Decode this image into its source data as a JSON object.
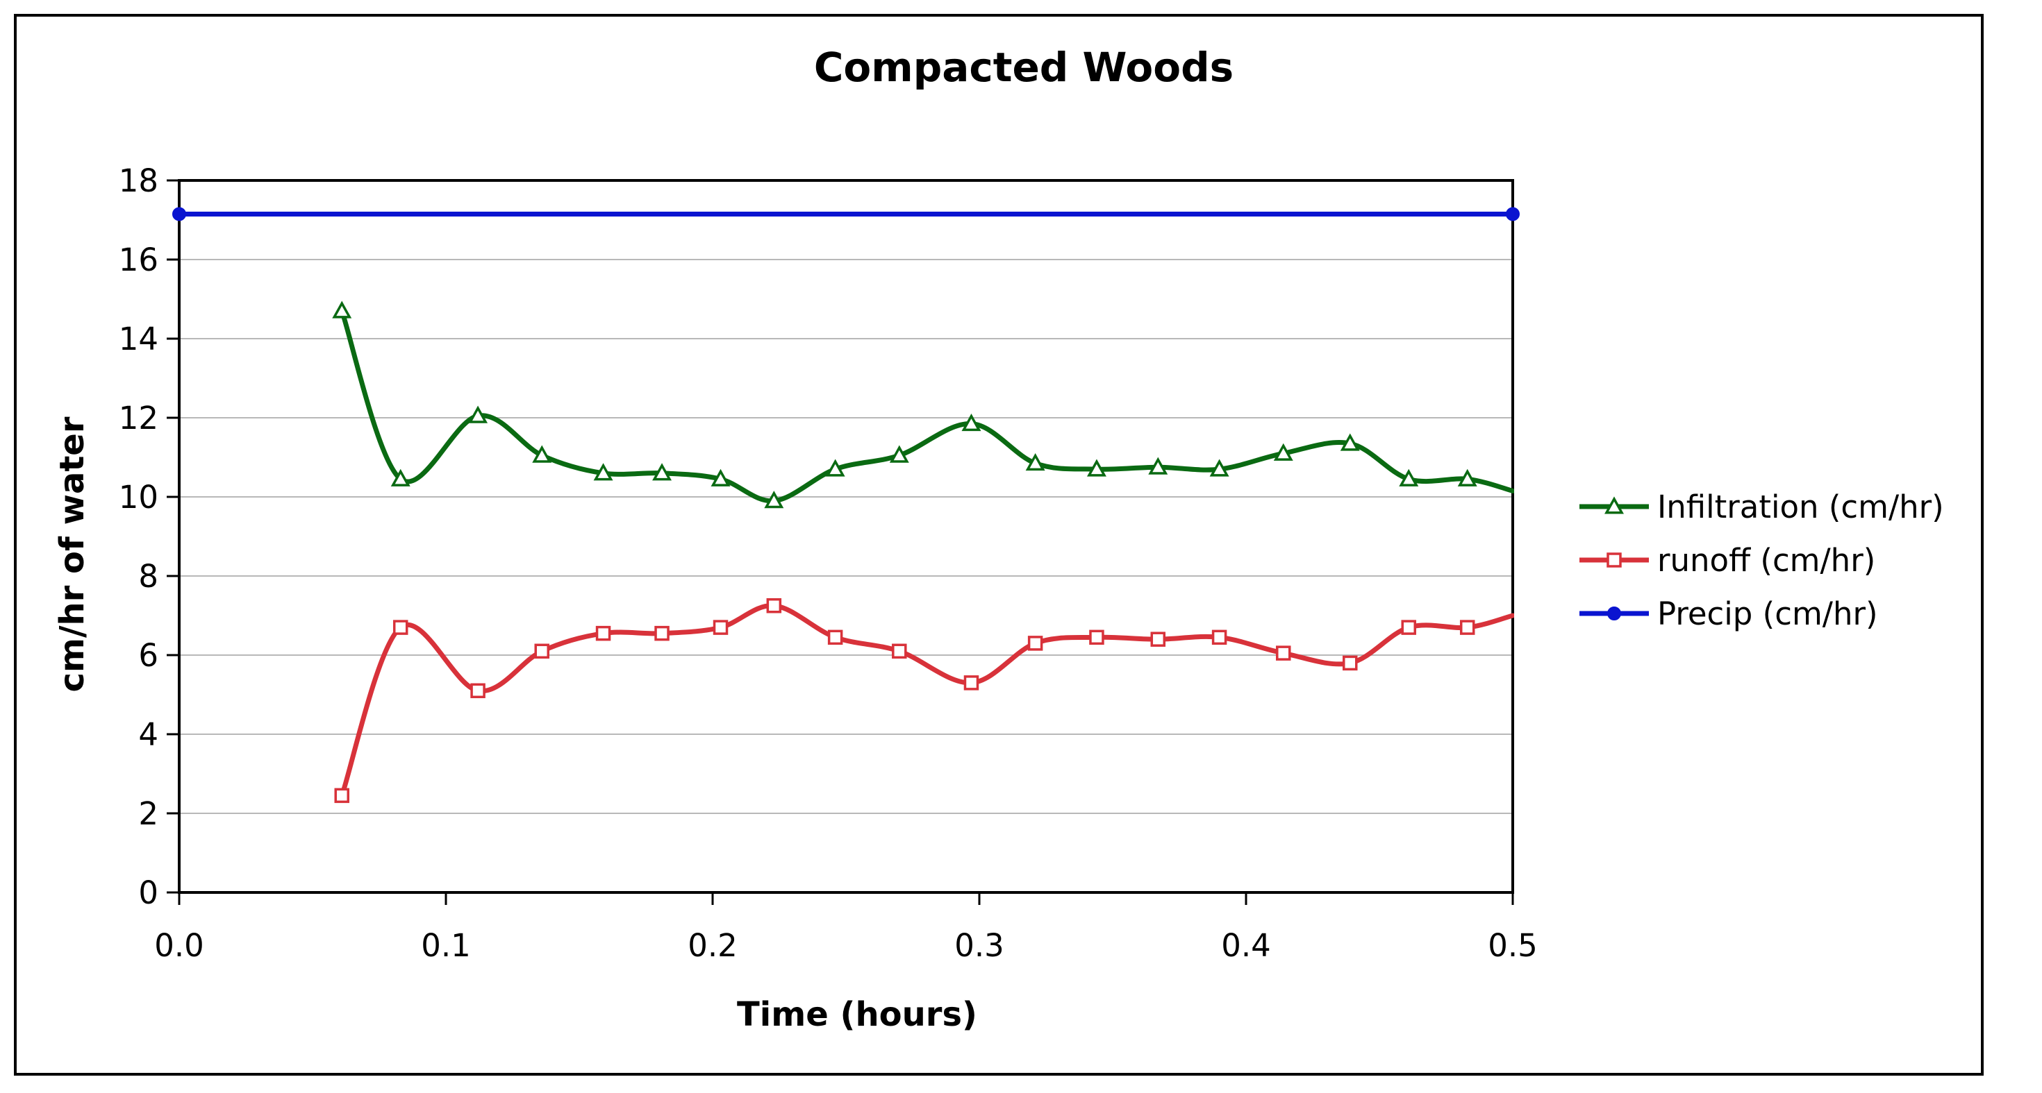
{
  "chart_data": {
    "type": "line",
    "title": "Compacted Woods",
    "xlabel": "Time (hours)",
    "ylabel": "cm/hr of water",
    "xlim": [
      0,
      0.5
    ],
    "ylim": [
      0,
      18
    ],
    "x_ticks": [
      "0.0",
      "0.1",
      "0.2",
      "0.3",
      "0.4",
      "0.5"
    ],
    "y_ticks": [
      "0",
      "2",
      "4",
      "6",
      "8",
      "10",
      "12",
      "14",
      "16",
      "18"
    ],
    "grid": "horizontal",
    "legend_position": "right",
    "smooth": true,
    "series": [
      {
        "name": "Infiltration (cm/hr)",
        "color": "#0a6a12",
        "marker": "triangle-open",
        "x": [
          0.061,
          0.083,
          0.112,
          0.136,
          0.159,
          0.181,
          0.203,
          0.223,
          0.246,
          0.27,
          0.297,
          0.321,
          0.344,
          0.367,
          0.39,
          0.414,
          0.439,
          0.461,
          0.483,
          0.5
        ],
        "y": [
          14.7,
          10.45,
          12.05,
          11.05,
          10.6,
          10.6,
          10.45,
          9.9,
          10.7,
          11.05,
          11.85,
          10.85,
          10.7,
          10.75,
          10.7,
          11.1,
          11.35,
          10.45,
          10.45,
          10.15
        ],
        "marker_count": 19
      },
      {
        "name": "runoff (cm/hr)",
        "color": "#d8323a",
        "marker": "square-open",
        "x": [
          0.061,
          0.083,
          0.112,
          0.136,
          0.159,
          0.181,
          0.203,
          0.223,
          0.246,
          0.27,
          0.297,
          0.321,
          0.344,
          0.367,
          0.39,
          0.414,
          0.439,
          0.461,
          0.483,
          0.5
        ],
        "y": [
          2.45,
          6.7,
          5.1,
          6.1,
          6.55,
          6.55,
          6.7,
          7.25,
          6.45,
          6.1,
          5.3,
          6.3,
          6.45,
          6.4,
          6.45,
          6.05,
          5.8,
          6.7,
          6.7,
          7.0
        ],
        "marker_count": 19
      },
      {
        "name": "Precip (cm/hr)",
        "color": "#0a14d0",
        "marker": "circle-filled",
        "x": [
          0.0,
          0.5
        ],
        "y": [
          17.15,
          17.15
        ],
        "marker_count": 2
      }
    ]
  }
}
